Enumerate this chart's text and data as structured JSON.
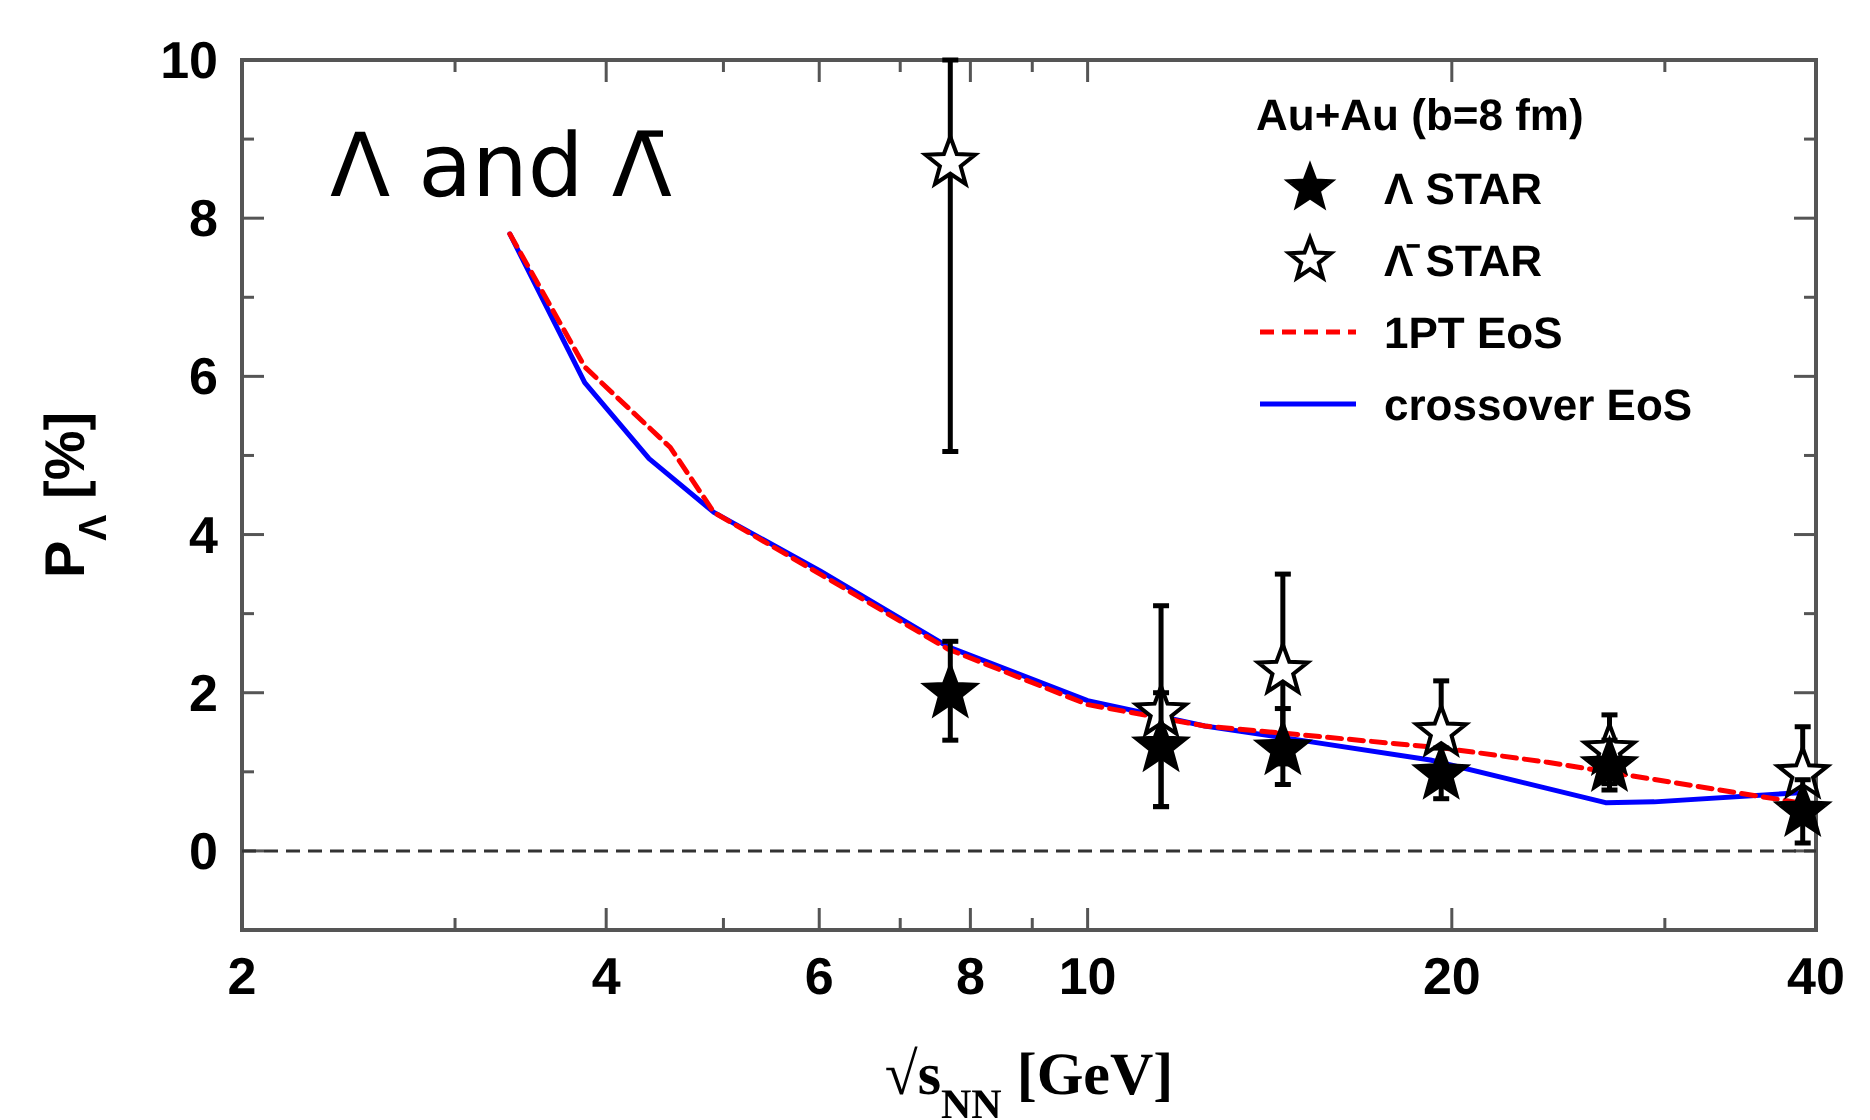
{
  "chart_data": {
    "type": "scatter",
    "xlabel": "√s$_{NN}$ [GeV]",
    "ylabel": "P$_{Λ}$ [%]",
    "legend_title": "Au+Au (b=8 fm)",
    "log": "x",
    "xlim": [
      2,
      40
    ],
    "xticks": [
      2,
      {
        "value": 3,
        "label": null
      },
      4,
      {
        "value": 5,
        "label": null
      },
      6,
      {
        "value": 7,
        "label": null
      },
      8,
      {
        "value": 9,
        "label": null
      },
      10,
      20,
      {
        "value": 30,
        "label": null
      },
      40
    ],
    "ylim": [
      -1,
      10
    ],
    "yticks": [
      0,
      {
        "value": 1,
        "label": null
      },
      2,
      {
        "value": 3,
        "label": null
      },
      4,
      {
        "value": 5,
        "label": null
      },
      6,
      {
        "value": 7,
        "label": null
      },
      8,
      {
        "value": 9,
        "label": null
      },
      10
    ],
    "grid": false,
    "legend": "top right",
    "marker": "star",
    "annotations": [
      "Λ and Λ̄"
    ],
    "ref_lines": [
      {
        "axis": "y",
        "value": 0,
        "color": "#333333",
        "line_style": "dashed"
      }
    ],
    "series": [
      {
        "name": "Λ STAR",
        "color": "#000000",
        "x": [
          7.7,
          11.5,
          14.5,
          19.6,
          27,
          39
        ],
        "values": [
          2.0,
          1.32,
          1.28,
          0.97,
          1.07,
          0.5
        ],
        "errors": [
          [
            1.4,
            2.65
          ],
          [
            0.56,
            2.0
          ],
          [
            0.84,
            1.8
          ],
          [
            0.66,
            1.3
          ],
          [
            0.77,
            1.4
          ],
          [
            0.1,
            0.9
          ]
        ]
      },
      {
        "name": "Λ̄ STAR",
        "color": "#000000",
        "x": [
          7.7,
          11.5,
          14.5,
          19.6,
          27,
          39
        ],
        "values": [
          8.7,
          1.75,
          2.28,
          1.5,
          1.27,
          0.97
        ],
        "errors": [
          [
            5.05,
            10
          ],
          [
            0.56,
            3.1
          ],
          [
            1.1,
            3.5
          ],
          [
            1.5,
            2.15
          ],
          [
            0.85,
            1.72
          ],
          [
            0.97,
            1.57
          ]
        ]
      },
      {
        "name": "1PT EoS",
        "type": "line",
        "color": "#ff0000",
        "line_style": "dashed",
        "marker": "none",
        "x": [
          3.33,
          3.84,
          4.52,
          4.91,
          6.01,
          7.67,
          10,
          12.5,
          14.7,
          19.7,
          24,
          39.1
        ],
        "values": [
          7.8,
          6.12,
          5.1,
          4.28,
          3.5,
          2.55,
          1.85,
          1.58,
          1.48,
          1.3,
          1.12,
          0.6
        ]
      },
      {
        "name": "crossover EoS",
        "type": "line",
        "color": "#0000ff",
        "line_style": "solid",
        "marker": "none",
        "x": [
          3.33,
          3.84,
          4.34,
          4.91,
          6.01,
          7.67,
          10,
          12.5,
          14.7,
          19.2,
          26.8,
          29.4,
          39.1
        ],
        "values": [
          7.8,
          5.92,
          4.96,
          4.28,
          3.54,
          2.58,
          1.9,
          1.58,
          1.42,
          1.15,
          0.61,
          0.62,
          0.74
        ]
      }
    ]
  }
}
